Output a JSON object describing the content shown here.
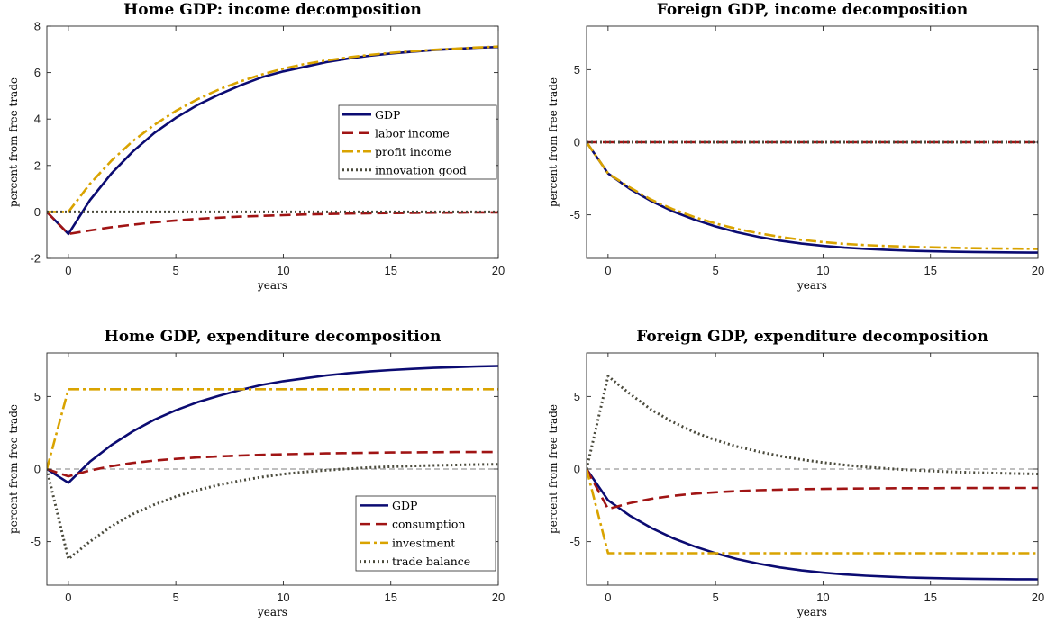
{
  "colors": {
    "gdp": "#0b0b72",
    "labor": "#a01414",
    "profit": "#d9a300",
    "innovation": "#4a4a3c",
    "zero_line": "#555555"
  },
  "chart_data": [
    {
      "type": "line",
      "title": "Home GDP: income decomposition",
      "xlabel": "years",
      "ylabel": "percent from free trade",
      "xlim": [
        -1,
        20
      ],
      "ylim": [
        -2,
        8
      ],
      "xticks": [
        0,
        5,
        10,
        15,
        20
      ],
      "yticks": [
        -2,
        0,
        2,
        4,
        6,
        8
      ],
      "zero_line": false,
      "legend": {
        "position": "center-right"
      },
      "x": [
        -1,
        0,
        1,
        2,
        3,
        4,
        5,
        6,
        7,
        8,
        9,
        10,
        11,
        12,
        13,
        14,
        15,
        16,
        17,
        18,
        19,
        20
      ],
      "series": [
        {
          "name": "GDP",
          "style": "solid",
          "color": "#0b0b72",
          "values": [
            0,
            -0.95,
            0.5,
            1.65,
            2.6,
            3.4,
            4.05,
            4.6,
            5.05,
            5.45,
            5.8,
            6.05,
            6.25,
            6.45,
            6.6,
            6.72,
            6.82,
            6.9,
            6.97,
            7.02,
            7.07,
            7.1
          ]
        },
        {
          "name": "labor income",
          "style": "dashed",
          "color": "#a01414",
          "values": [
            0,
            -0.95,
            -0.8,
            -0.66,
            -0.55,
            -0.45,
            -0.37,
            -0.3,
            -0.25,
            -0.2,
            -0.17,
            -0.14,
            -0.11,
            -0.09,
            -0.07,
            -0.06,
            -0.05,
            -0.04,
            -0.03,
            -0.03,
            -0.02,
            -0.02
          ]
        },
        {
          "name": "profit income",
          "style": "dashdot",
          "color": "#d9a300",
          "values": [
            0,
            0,
            1.2,
            2.2,
            3.05,
            3.75,
            4.35,
            4.85,
            5.27,
            5.62,
            5.92,
            6.17,
            6.37,
            6.52,
            6.65,
            6.76,
            6.85,
            6.92,
            6.98,
            7.03,
            7.08,
            7.12
          ]
        },
        {
          "name": "innovation good",
          "style": "dotted",
          "color": "#4a4a3c",
          "values": [
            0,
            0,
            0,
            0,
            0,
            0,
            0,
            0,
            0,
            0,
            0,
            0,
            0,
            0,
            0,
            0,
            0,
            0,
            0,
            0,
            0,
            0
          ]
        }
      ]
    },
    {
      "type": "line",
      "title": "Foreign GDP, income decomposition",
      "xlabel": "years",
      "ylabel": "percent from free trade",
      "xlim": [
        -1,
        20
      ],
      "ylim": [
        -8,
        8
      ],
      "xticks": [
        0,
        5,
        10,
        15,
        20
      ],
      "yticks": [
        -5,
        0,
        5
      ],
      "zero_line": false,
      "x": [
        -1,
        0,
        1,
        2,
        3,
        4,
        5,
        6,
        7,
        8,
        9,
        10,
        11,
        12,
        13,
        14,
        15,
        16,
        17,
        18,
        19,
        20
      ],
      "series": [
        {
          "name": "GDP",
          "style": "solid",
          "color": "#0b0b72",
          "values": [
            0,
            -2.15,
            -3.2,
            -4.05,
            -4.75,
            -5.32,
            -5.8,
            -6.2,
            -6.52,
            -6.78,
            -6.98,
            -7.14,
            -7.26,
            -7.35,
            -7.42,
            -7.47,
            -7.51,
            -7.54,
            -7.56,
            -7.58,
            -7.59,
            -7.6
          ]
        },
        {
          "name": "labor income",
          "style": "dashed",
          "color": "#a01414",
          "values": [
            0,
            0,
            0,
            0,
            0,
            0,
            0,
            0,
            0,
            0,
            0,
            0,
            0,
            0,
            0,
            0,
            0,
            0,
            0,
            0,
            0,
            0
          ]
        },
        {
          "name": "profit income",
          "style": "dashdot",
          "color": "#d9a300",
          "values": [
            0,
            -2.15,
            -3.1,
            -3.95,
            -4.6,
            -5.15,
            -5.6,
            -5.97,
            -6.27,
            -6.52,
            -6.72,
            -6.88,
            -7.0,
            -7.09,
            -7.15,
            -7.2,
            -7.24,
            -7.27,
            -7.3,
            -7.32,
            -7.33,
            -7.35
          ]
        },
        {
          "name": "innovation good",
          "style": "dotted",
          "color": "#4a4a3c",
          "values": [
            0,
            0,
            0,
            0,
            0,
            0,
            0,
            0,
            0,
            0,
            0,
            0,
            0,
            0,
            0,
            0,
            0,
            0,
            0,
            0,
            0,
            0
          ]
        }
      ]
    },
    {
      "type": "line",
      "title": "Home GDP, expenditure decomposition",
      "xlabel": "years",
      "ylabel": "percent from free trade",
      "xlim": [
        -1,
        20
      ],
      "ylim": [
        -8,
        8
      ],
      "xticks": [
        0,
        5,
        10,
        15,
        20
      ],
      "yticks": [
        -5,
        0,
        5
      ],
      "zero_line": true,
      "legend": {
        "position": "bottom-right"
      },
      "x": [
        -1,
        0,
        1,
        2,
        3,
        4,
        5,
        6,
        7,
        8,
        9,
        10,
        11,
        12,
        13,
        14,
        15,
        16,
        17,
        18,
        19,
        20
      ],
      "series": [
        {
          "name": "GDP",
          "style": "solid",
          "color": "#0b0b72",
          "values": [
            0,
            -0.95,
            0.5,
            1.65,
            2.6,
            3.4,
            4.05,
            4.6,
            5.05,
            5.45,
            5.8,
            6.05,
            6.25,
            6.45,
            6.6,
            6.72,
            6.82,
            6.9,
            6.97,
            7.02,
            7.07,
            7.1
          ]
        },
        {
          "name": "consumption",
          "style": "dashed",
          "color": "#a01414",
          "values": [
            0,
            -0.5,
            -0.1,
            0.2,
            0.42,
            0.58,
            0.7,
            0.8,
            0.87,
            0.93,
            0.98,
            1.02,
            1.05,
            1.08,
            1.1,
            1.12,
            1.14,
            1.15,
            1.16,
            1.17,
            1.17,
            1.18
          ]
        },
        {
          "name": "investment",
          "style": "dashdot",
          "color": "#d9a300",
          "values": [
            0,
            5.5,
            5.5,
            5.5,
            5.5,
            5.5,
            5.5,
            5.5,
            5.5,
            5.5,
            5.5,
            5.5,
            5.5,
            5.5,
            5.5,
            5.5,
            5.5,
            5.5,
            5.5,
            5.5,
            5.5,
            5.5
          ]
        },
        {
          "name": "trade balance",
          "style": "dotted",
          "color": "#4a4a3c",
          "values": [
            0,
            -6.2,
            -5.0,
            -3.95,
            -3.1,
            -2.45,
            -1.9,
            -1.45,
            -1.1,
            -0.8,
            -0.55,
            -0.35,
            -0.2,
            -0.08,
            0.02,
            0.1,
            0.16,
            0.21,
            0.25,
            0.28,
            0.31,
            0.33
          ]
        }
      ]
    },
    {
      "type": "line",
      "title": "Foreign GDP, expenditure decomposition",
      "xlabel": "years",
      "ylabel": "percent from free trade",
      "xlim": [
        -1,
        20
      ],
      "ylim": [
        -8,
        8
      ],
      "xticks": [
        0,
        5,
        10,
        15,
        20
      ],
      "yticks": [
        -5,
        0,
        5
      ],
      "zero_line": true,
      "x": [
        -1,
        0,
        1,
        2,
        3,
        4,
        5,
        6,
        7,
        8,
        9,
        10,
        11,
        12,
        13,
        14,
        15,
        16,
        17,
        18,
        19,
        20
      ],
      "series": [
        {
          "name": "GDP",
          "style": "solid",
          "color": "#0b0b72",
          "values": [
            0,
            -2.15,
            -3.2,
            -4.05,
            -4.75,
            -5.32,
            -5.8,
            -6.2,
            -6.52,
            -6.78,
            -6.98,
            -7.14,
            -7.26,
            -7.35,
            -7.42,
            -7.47,
            -7.51,
            -7.54,
            -7.56,
            -7.58,
            -7.59,
            -7.6
          ]
        },
        {
          "name": "consumption",
          "style": "dashed",
          "color": "#a01414",
          "values": [
            0,
            -2.75,
            -2.35,
            -2.05,
            -1.85,
            -1.7,
            -1.6,
            -1.52,
            -1.46,
            -1.42,
            -1.39,
            -1.37,
            -1.35,
            -1.34,
            -1.33,
            -1.32,
            -1.32,
            -1.31,
            -1.31,
            -1.31,
            -1.3,
            -1.3
          ]
        },
        {
          "name": "investment",
          "style": "dashdot",
          "color": "#d9a300",
          "values": [
            0,
            -5.8,
            -5.8,
            -5.8,
            -5.8,
            -5.8,
            -5.8,
            -5.8,
            -5.8,
            -5.8,
            -5.8,
            -5.8,
            -5.8,
            -5.8,
            -5.8,
            -5.8,
            -5.8,
            -5.8,
            -5.8,
            -5.8,
            -5.8,
            -5.8
          ]
        },
        {
          "name": "trade balance",
          "style": "dotted",
          "color": "#4a4a3c",
          "values": [
            0,
            6.4,
            5.2,
            4.1,
            3.25,
            2.55,
            2.0,
            1.55,
            1.2,
            0.9,
            0.65,
            0.45,
            0.28,
            0.14,
            0.03,
            -0.06,
            -0.13,
            -0.19,
            -0.24,
            -0.28,
            -0.31,
            -0.34
          ]
        }
      ]
    }
  ]
}
